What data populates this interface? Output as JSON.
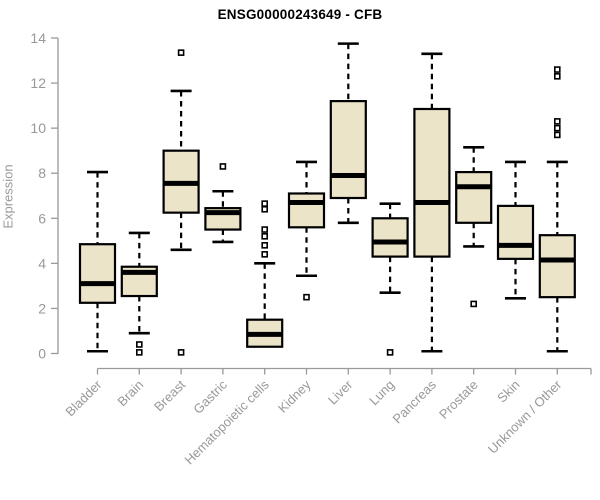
{
  "chart_data": {
    "type": "boxplot",
    "title": "ENSG00000243649 - CFB",
    "ylabel": "Expression",
    "xlabel": "",
    "ylim": [
      0,
      14
    ],
    "yticks": [
      0,
      2,
      4,
      6,
      8,
      10,
      12,
      14
    ],
    "grid": false,
    "legend": "none",
    "categories": [
      "Bladder",
      "Brain",
      "Breast",
      "Gastric",
      "Hematopoietic cells",
      "Kidney",
      "Liver",
      "Lung",
      "Pancreas",
      "Prostate",
      "Skin",
      "Unknown / Other"
    ],
    "series": [
      {
        "category": "Bladder",
        "whisker_low": 0.1,
        "q1": 2.25,
        "median": 3.1,
        "q3": 4.85,
        "whisker_high": 8.05,
        "outliers": []
      },
      {
        "category": "Brain",
        "whisker_low": 0.9,
        "q1": 2.55,
        "median": 3.6,
        "q3": 3.85,
        "whisker_high": 5.35,
        "outliers": [
          0.4,
          0.05
        ]
      },
      {
        "category": "Breast",
        "whisker_low": 4.6,
        "q1": 6.25,
        "median": 7.55,
        "q3": 9.0,
        "whisker_high": 11.65,
        "outliers": [
          13.35,
          0.05
        ]
      },
      {
        "category": "Gastric",
        "whisker_low": 4.95,
        "q1": 5.5,
        "median": 6.25,
        "q3": 6.45,
        "whisker_high": 7.2,
        "outliers": [
          8.3
        ]
      },
      {
        "category": "Hematopoietic cells",
        "whisker_low": 0.3,
        "q1": 0.3,
        "median": 0.85,
        "q3": 1.5,
        "whisker_high": 4.0,
        "outliers": [
          6.65,
          6.4,
          5.5,
          5.2,
          4.8,
          4.4
        ]
      },
      {
        "category": "Kidney",
        "whisker_low": 3.45,
        "q1": 5.6,
        "median": 6.7,
        "q3": 7.1,
        "whisker_high": 8.5,
        "outliers": [
          2.5
        ]
      },
      {
        "category": "Liver",
        "whisker_low": 5.8,
        "q1": 6.9,
        "median": 7.9,
        "q3": 11.2,
        "whisker_high": 13.75,
        "outliers": []
      },
      {
        "category": "Lung",
        "whisker_low": 2.7,
        "q1": 4.3,
        "median": 4.95,
        "q3": 6.0,
        "whisker_high": 6.65,
        "outliers": [
          0.05
        ]
      },
      {
        "category": "Pancreas",
        "whisker_low": 0.1,
        "q1": 4.3,
        "median": 6.7,
        "q3": 10.85,
        "whisker_high": 13.3,
        "outliers": []
      },
      {
        "category": "Prostate",
        "whisker_low": 4.75,
        "q1": 5.8,
        "median": 7.4,
        "q3": 8.05,
        "whisker_high": 9.15,
        "outliers": [
          2.2
        ]
      },
      {
        "category": "Skin",
        "whisker_low": 2.45,
        "q1": 4.2,
        "median": 4.8,
        "q3": 6.55,
        "whisker_high": 8.5,
        "outliers": []
      },
      {
        "category": "Unknown / Other",
        "whisker_low": 0.1,
        "q1": 2.5,
        "median": 4.15,
        "q3": 5.25,
        "whisker_high": 8.5,
        "outliers": [
          12.6,
          12.3,
          10.3,
          10.0,
          9.7
        ]
      }
    ],
    "colors": {
      "box_fill": "#ebe4c8",
      "box_stroke": "#000000",
      "median": "#000000",
      "whisker": "#000000",
      "outlier_fill": "#ffffff",
      "axis": "#999999",
      "axis_text": "#999999",
      "title": "#000000",
      "background": "#ffffff"
    }
  }
}
